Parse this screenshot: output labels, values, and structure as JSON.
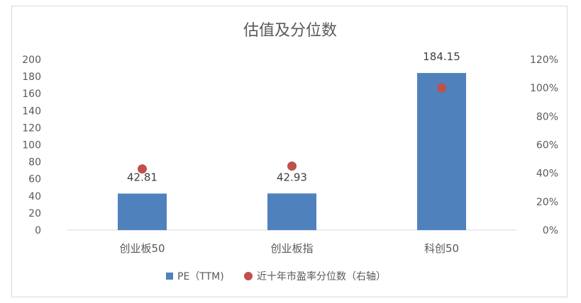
{
  "chart_data": {
    "type": "bar",
    "title": "估值及分位数",
    "categories": [
      "创业板50",
      "创业板指",
      "科创50"
    ],
    "series": [
      {
        "name": "PE（TTM)",
        "kind": "bar",
        "axis": "left",
        "color": "#4f81bd",
        "values": [
          42.81,
          42.93,
          184.15
        ],
        "labels": [
          "42.81",
          "42.93",
          "184.15"
        ]
      },
      {
        "name": "近十年市盈率分位数（右轴）",
        "kind": "scatter",
        "axis": "right",
        "color": "#c0504d",
        "values": [
          0.43,
          0.45,
          1.0
        ]
      }
    ],
    "left_axis": {
      "min": 0,
      "max": 200,
      "ticks": [
        "0",
        "20",
        "40",
        "60",
        "80",
        "100",
        "120",
        "140",
        "160",
        "180",
        "200"
      ]
    },
    "right_axis": {
      "min": 0,
      "max": 1.2,
      "ticks": [
        "0%",
        "20%",
        "40%",
        "60%",
        "80%",
        "100%",
        "120%"
      ]
    },
    "legend_position": "bottom",
    "grid": false
  }
}
